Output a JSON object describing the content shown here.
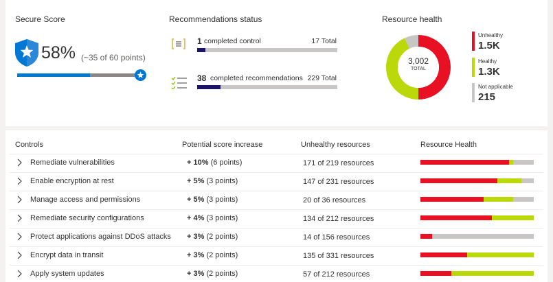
{
  "secure_score": {
    "title": "Secure Score",
    "percent": "58%",
    "points": "(~35 of 60 points)",
    "fraction": 0.58
  },
  "recommendations_status": {
    "title": "Recommendations status",
    "controls": {
      "count": "1",
      "label": "completed control",
      "total": "17 Total",
      "fraction": 0.0588
    },
    "recommendations": {
      "count": "38",
      "label": "completed recommendations",
      "total": "229 Total",
      "fraction": 0.1659
    }
  },
  "resource_health": {
    "title": "Resource health",
    "total": "3,002",
    "total_label": "TOTAL",
    "legend": [
      {
        "label": "Unhealthy",
        "value": "1.5K",
        "color": "#e81123",
        "fraction": 0.5
      },
      {
        "label": "Healthy",
        "value": "1.3K",
        "color": "#bad80a",
        "fraction": 0.43
      },
      {
        "label": "Not applicable",
        "value": "215",
        "color": "#c8c6c4",
        "fraction": 0.07
      }
    ]
  },
  "table": {
    "columns": [
      "Controls",
      "Potential score increase",
      "Unhealthy resources",
      "Resource Health"
    ],
    "rows": [
      {
        "control": "Remediate vulnerabilities",
        "increase": "+ 10%",
        "points": "(6 points)",
        "unhealthy": "171 of 219 resources",
        "health": {
          "unhealthy": 0.78,
          "healthy": 0.04,
          "na": 0.18
        }
      },
      {
        "control": "Enable encryption at rest",
        "increase": "+ 5%",
        "points": "(3 points)",
        "unhealthy": "147 of 231 resources",
        "health": {
          "unhealthy": 0.68,
          "healthy": 0.21,
          "na": 0.11
        }
      },
      {
        "control": "Manage access and permissions",
        "increase": "+ 5%",
        "points": "(3 points)",
        "unhealthy": "20 of 36 resources",
        "health": {
          "unhealthy": 0.56,
          "healthy": 0.26,
          "na": 0.18
        }
      },
      {
        "control": "Remediate security configurations",
        "increase": "+ 4%",
        "points": "(3 points)",
        "unhealthy": "134 of 212 resources",
        "health": {
          "unhealthy": 0.63,
          "healthy": 0.37,
          "na": 0.0
        }
      },
      {
        "control": "Protect applications against DDoS attacks",
        "increase": "+ 3%",
        "points": "(2 points)",
        "unhealthy": "14 of 156 resources",
        "health": {
          "unhealthy": 0.1,
          "healthy": 0.01,
          "na": 0.89
        }
      },
      {
        "control": "Encrypt data in transit",
        "increase": "+ 3%",
        "points": "(2 points)",
        "unhealthy": "135 of 331 resources",
        "health": {
          "unhealthy": 0.41,
          "healthy": 0.59,
          "na": 0.0
        }
      },
      {
        "control": "Apply system updates",
        "increase": "+ 3%",
        "points": "(2 points)",
        "unhealthy": "57 of 212 resources",
        "health": {
          "unhealthy": 0.27,
          "healthy": 0.73,
          "na": 0.0
        }
      }
    ]
  }
}
